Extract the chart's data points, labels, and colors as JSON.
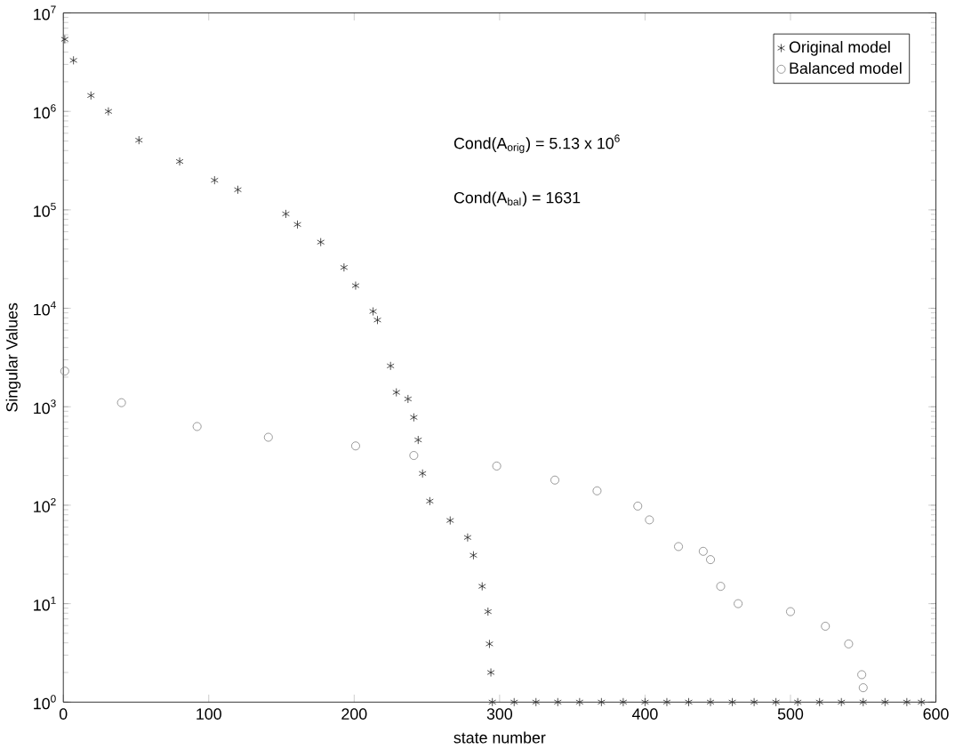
{
  "chart_data": {
    "type": "scatter",
    "xlabel": "state number",
    "ylabel": "Singular Values",
    "log": "y",
    "legend": "top right",
    "grid": false,
    "xlim": [
      0,
      600
    ],
    "xticks": [
      0,
      100,
      200,
      300,
      400,
      500,
      600
    ],
    "ylim": [
      1,
      10000000
    ],
    "yticks": [
      {
        "value": 1,
        "label": "10$^{0}$"
      },
      {
        "value": 10,
        "label": "10$^{1}$"
      },
      {
        "value": 100,
        "label": "10$^{2}$"
      },
      {
        "value": 1000,
        "label": "10$^{3}$"
      },
      {
        "value": 10000,
        "label": "10$^{4}$"
      },
      {
        "value": 100000,
        "label": "10$^{5}$"
      },
      {
        "value": 1000000,
        "label": "10$^{6}$"
      },
      {
        "value": 10000000,
        "label": "10$^{7}$"
      }
    ],
    "annotations": [
      "Cond(A$_{orig}$) = 5.13 x 10$^{6}$",
      "Cond(A$_{bal}$) = 1631"
    ],
    "series": [
      {
        "name": "Original model",
        "color": "#222222",
        "x": [
          1,
          7,
          19,
          31,
          52,
          80,
          104,
          120,
          153,
          161,
          177,
          193,
          201,
          213,
          216,
          225,
          229,
          237,
          241,
          244,
          247,
          252,
          266,
          278,
          282,
          288,
          292,
          293,
          294,
          295,
          310,
          325,
          340,
          355,
          370,
          385,
          400,
          415,
          430,
          445,
          460,
          475,
          490,
          505,
          520,
          535,
          550,
          565,
          580,
          590
        ],
        "values": [
          5400000,
          3300000,
          1450000,
          1000000,
          510000,
          310000,
          200000,
          160000,
          91000,
          71000,
          47000,
          26000,
          17000,
          9300,
          7600,
          2600,
          1400,
          1200,
          780,
          460,
          210,
          110,
          70,
          47,
          31,
          15,
          8.3,
          3.9,
          2,
          1,
          1,
          1,
          1,
          1,
          1,
          1,
          1,
          1,
          1,
          1,
          1,
          1,
          1,
          1,
          1,
          1,
          1,
          1,
          1,
          1
        ]
      },
      {
        "name": "Balanced model",
        "color": "#808080",
        "marker": "circle",
        "x": [
          1,
          40,
          92,
          141,
          201,
          241,
          298,
          338,
          367,
          395,
          403,
          423,
          440,
          445,
          452,
          464,
          500,
          524,
          540,
          549,
          550
        ],
        "values": [
          2300,
          1100,
          630,
          490,
          400,
          320,
          250,
          180,
          140,
          98,
          71,
          38,
          34,
          28,
          15,
          10,
          8.3,
          5.9,
          3.9,
          1.9,
          1.4
        ]
      }
    ]
  }
}
